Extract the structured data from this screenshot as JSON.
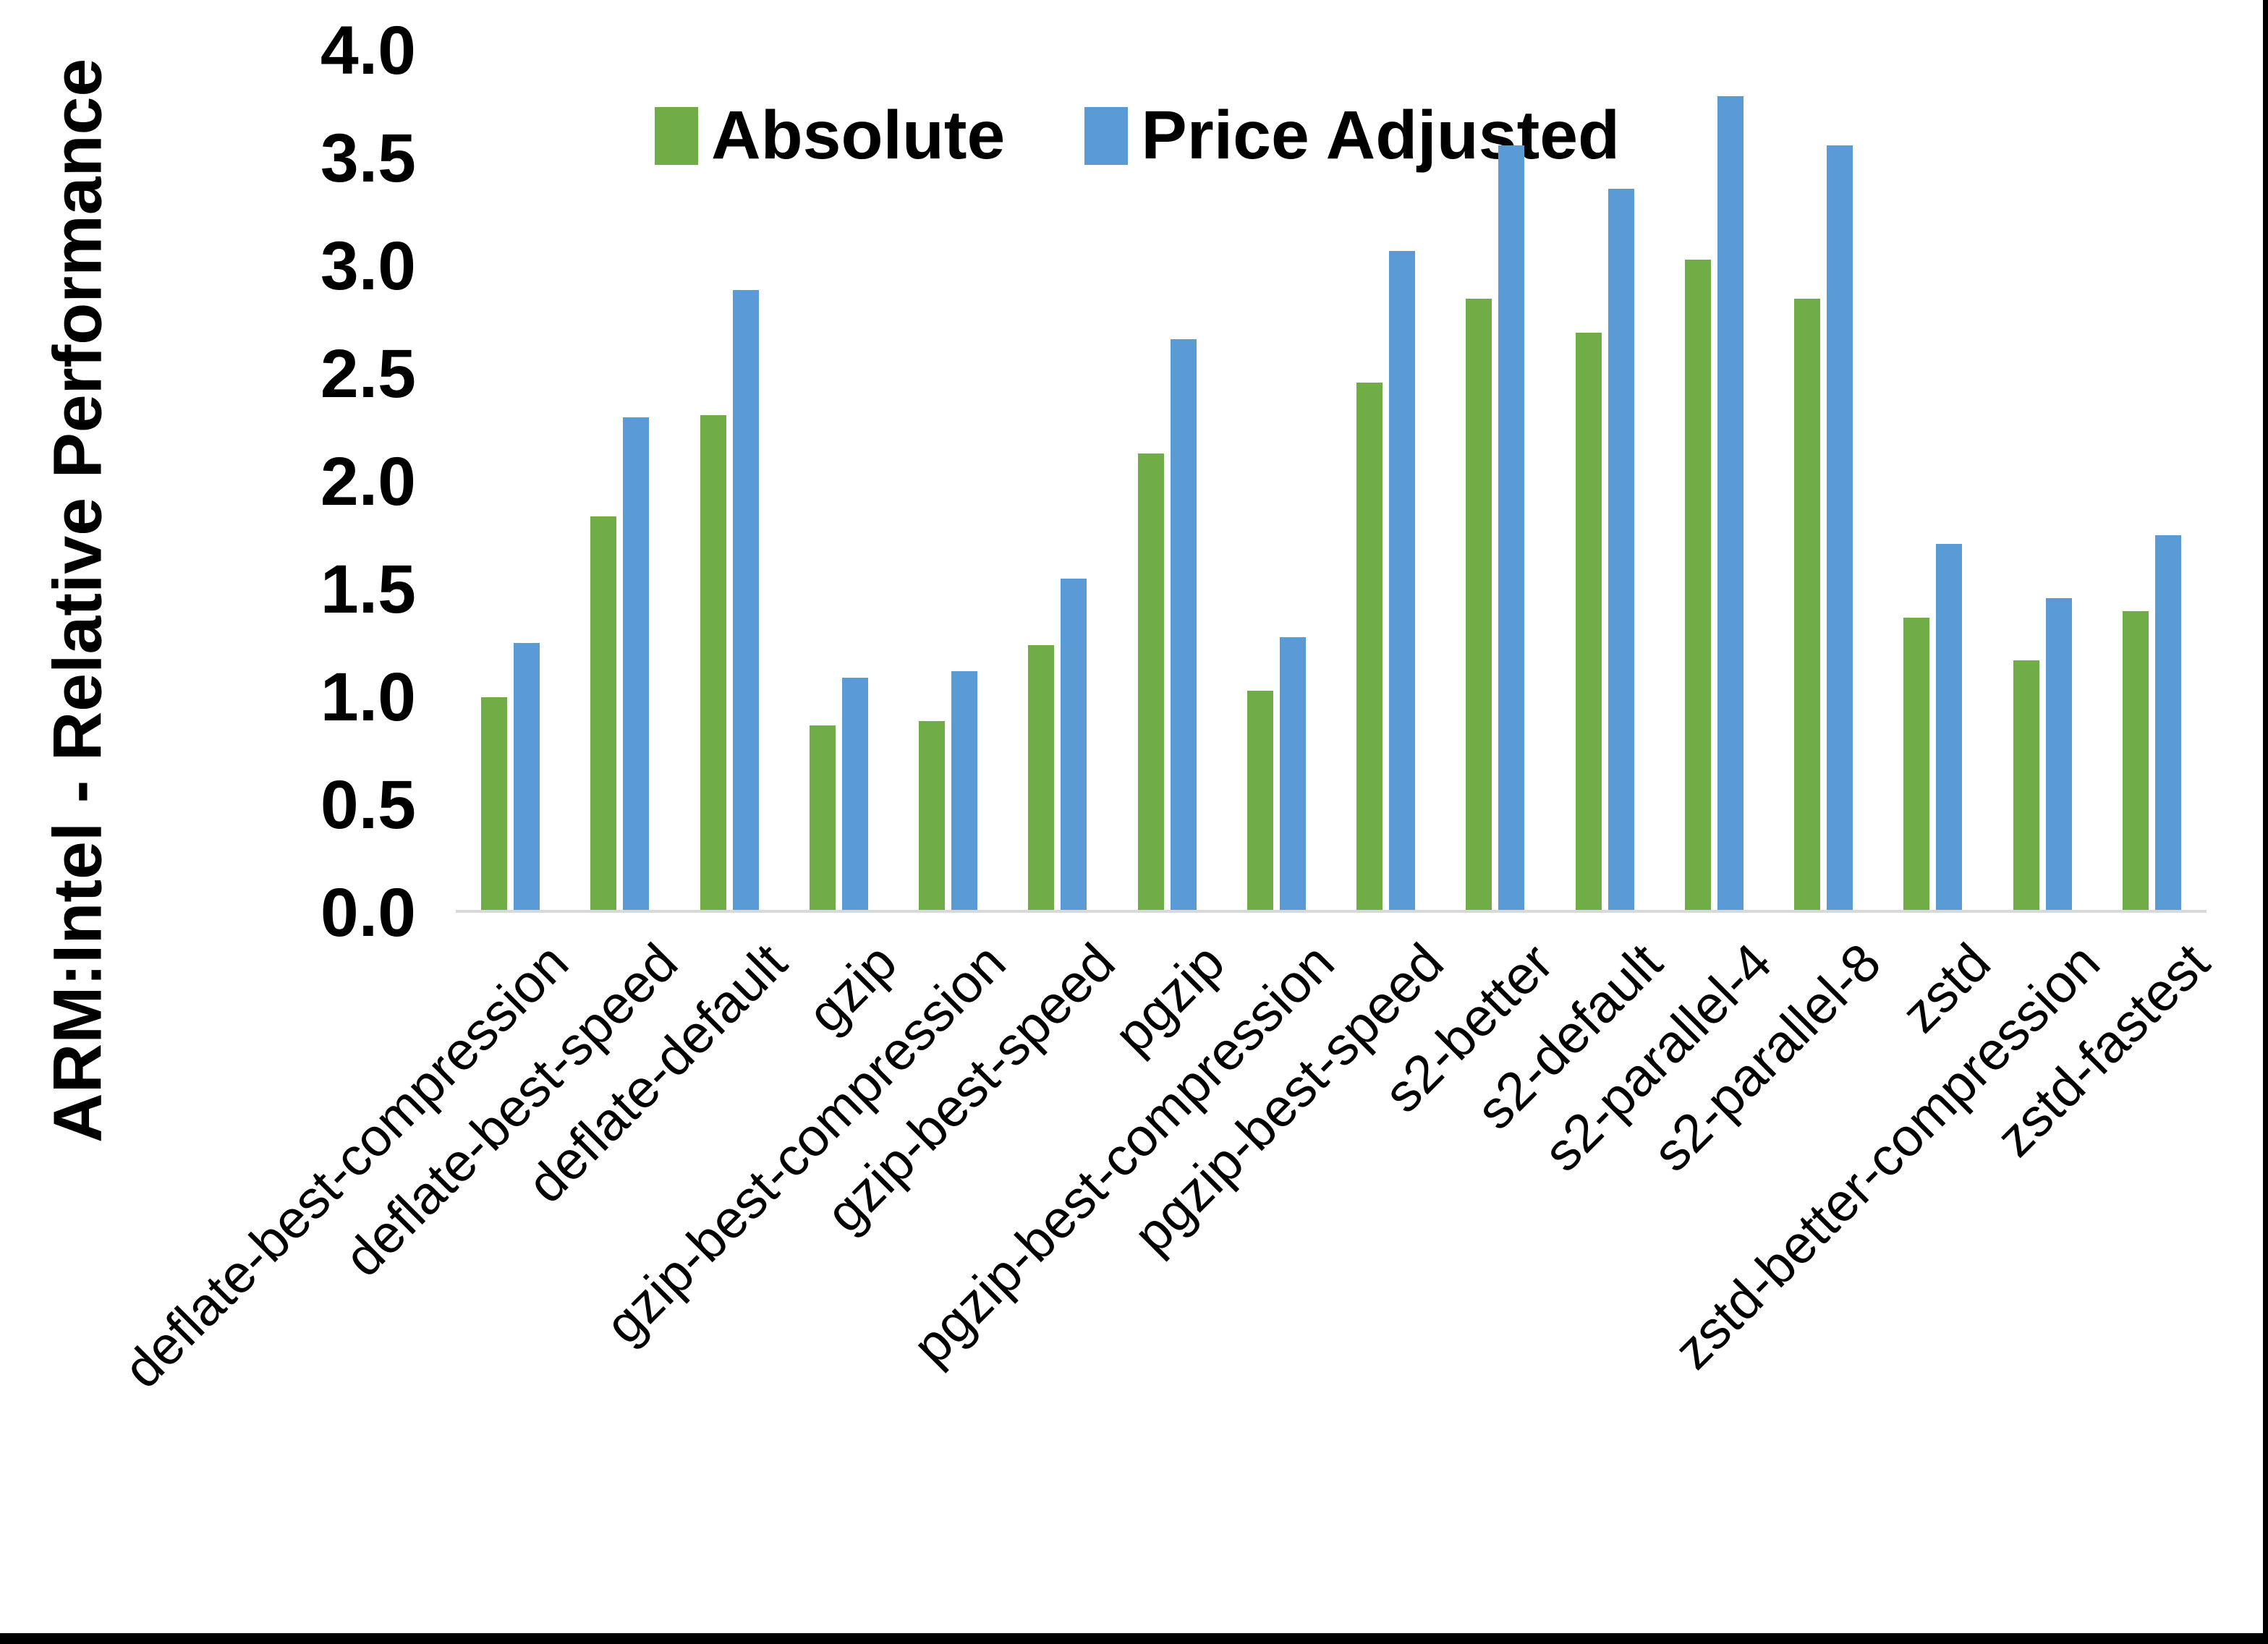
{
  "chart_data": {
    "type": "bar",
    "title": "",
    "ylabel": "ARM:Intel - Relative Performance",
    "xlabel": "",
    "ylim": [
      0.0,
      4.0
    ],
    "ytick_step": 0.5,
    "ytick_labels": [
      "4.0",
      "3.5",
      "3.0",
      "2.5",
      "2.0",
      "1.5",
      "1.0",
      "0.5",
      "0.0"
    ],
    "grid": false,
    "legend_position": "top-center",
    "axis_line_color": "#D9D9D9",
    "categories": [
      "deflate-best-compression",
      "deflate-best-speed",
      "deflate-default",
      "gzip",
      "gzip-best-compression",
      "gzip-best-speed",
      "pgzip",
      "pgzip-best-compression",
      "pgzip-best-speed",
      "s2-better",
      "s2-default",
      "s2-parallel-4",
      "s2-parallel-8",
      "zstd",
      "zstd-better-compression",
      "zstd-fastest"
    ],
    "series": [
      {
        "name": "Absolute",
        "color": "#70AD47",
        "values": [
          1.0,
          1.84,
          2.31,
          0.87,
          0.89,
          1.24,
          2.13,
          1.03,
          2.46,
          2.85,
          2.69,
          3.03,
          2.85,
          1.37,
          1.17,
          1.4
        ]
      },
      {
        "name": "Price Adjusted",
        "color": "#5B9BD5",
        "values": [
          1.25,
          2.3,
          2.89,
          1.09,
          1.12,
          1.55,
          2.66,
          1.28,
          3.07,
          3.56,
          3.36,
          3.79,
          3.56,
          1.71,
          1.46,
          1.75
        ]
      }
    ]
  },
  "frame": {
    "right_border_color": "#000000",
    "bottom_border_color": "#000000"
  }
}
